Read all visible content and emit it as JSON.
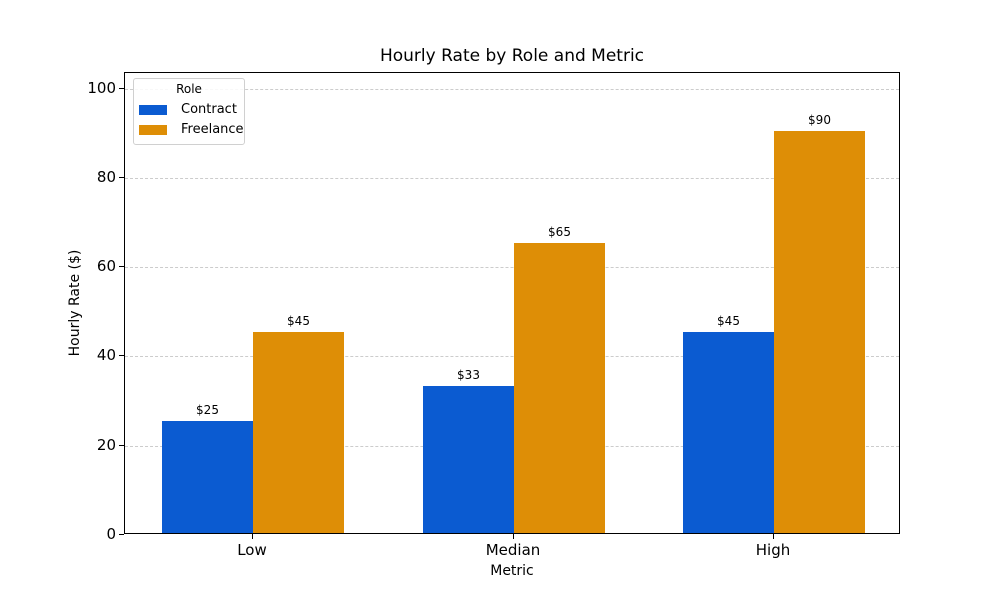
{
  "chart_data": {
    "type": "bar",
    "title": "Hourly Rate by Role and Metric",
    "xlabel": "Metric",
    "ylabel": "Hourly Rate ($)",
    "categories": [
      "Low",
      "Median",
      "High"
    ],
    "series": [
      {
        "name": "Contract",
        "color": "#0b5bd1",
        "values": [
          25,
          33,
          45
        ],
        "labels": [
          "$25",
          "$33",
          "$45"
        ]
      },
      {
        "name": "Freelance",
        "color": "#de8e06",
        "values": [
          45,
          65,
          90
        ],
        "labels": [
          "$45",
          "$65",
          "$90"
        ]
      }
    ],
    "ylim": [
      0,
      103.5
    ],
    "yticks": [
      0,
      20,
      40,
      60,
      80,
      100
    ],
    "grid": true,
    "grid_style": "dashed horizontal",
    "legend": {
      "title": "Role",
      "position": "upper left"
    }
  }
}
